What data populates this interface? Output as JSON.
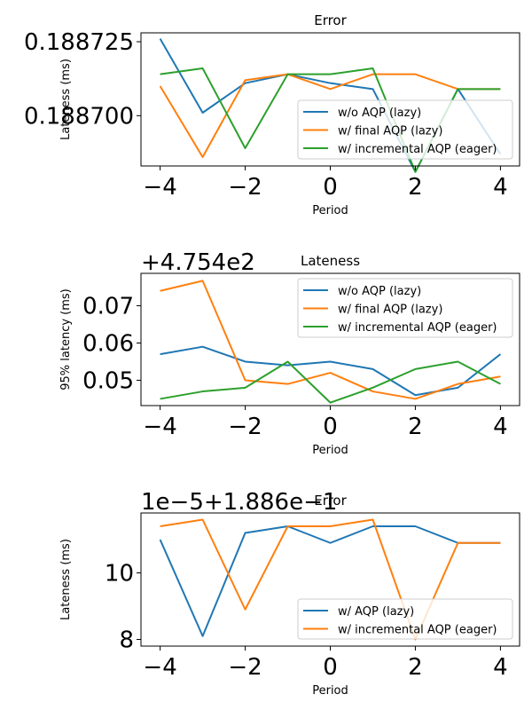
{
  "chart_data": [
    {
      "type": "line",
      "title": "Error",
      "xlabel": "Period",
      "ylabel": "Lateness (ms)",
      "offset_text": "",
      "x": [
        -4,
        -3,
        -2,
        -1,
        0,
        1,
        2,
        3,
        4
      ],
      "xlim": [
        -4.45,
        4.45
      ],
      "ylim": [
        0.188683,
        0.188728
      ],
      "xticks": [
        -4,
        -2,
        0,
        2,
        4
      ],
      "xtick_labels": [
        "−4",
        "−2",
        "0",
        "2",
        "4"
      ],
      "yticks": [
        0.1887,
        0.188725
      ],
      "ytick_labels": [
        "0.188700",
        "0.188725"
      ],
      "legend_loc": "lower-right",
      "series": [
        {
          "name": "w/o AQP (lazy)",
          "color": "#1f77b4",
          "values": [
            0.188726,
            0.188701,
            0.188711,
            0.188714,
            0.188711,
            0.188709,
            0.188681,
            0.188709,
            0.188687
          ]
        },
        {
          "name": "w/ final AQP (lazy)",
          "color": "#ff7f0e",
          "values": [
            0.18871,
            0.188686,
            0.188712,
            0.188714,
            0.188709,
            0.188714,
            0.188714,
            0.188709,
            0.188709
          ]
        },
        {
          "name": "w/ incremental AQP (eager)",
          "color": "#2ca02c",
          "values": [
            0.188714,
            0.188716,
            0.188689,
            0.188714,
            0.188714,
            0.188716,
            0.188681,
            0.188709,
            0.188709
          ]
        }
      ]
    },
    {
      "type": "line",
      "title": "Lateness",
      "xlabel": "Period",
      "ylabel": "95% latency (ms)",
      "offset_text": "+4.754e2",
      "x": [
        -4,
        -3,
        -2,
        -1,
        0,
        1,
        2,
        3,
        4
      ],
      "xlim": [
        -4.45,
        4.45
      ],
      "ylim": [
        0.0432,
        0.0787
      ],
      "xticks": [
        -4,
        -2,
        0,
        2,
        4
      ],
      "xtick_labels": [
        "−4",
        "−2",
        "0",
        "2",
        "4"
      ],
      "yticks": [
        0.05,
        0.06,
        0.07
      ],
      "ytick_labels": [
        "0.05",
        "0.06",
        "0.07"
      ],
      "legend_loc": "upper-right",
      "series": [
        {
          "name": "w/o AQP (lazy)",
          "color": "#1f77b4",
          "values": [
            0.057,
            0.059,
            0.055,
            0.054,
            0.055,
            0.053,
            0.046,
            0.048,
            0.057
          ]
        },
        {
          "name": "w/ final AQP (lazy)",
          "color": "#ff7f0e",
          "values": [
            0.074,
            0.0767,
            0.05,
            0.049,
            0.052,
            0.047,
            0.045,
            0.049,
            0.051
          ]
        },
        {
          "name": "w/ incremental AQP (eager)",
          "color": "#2ca02c",
          "values": [
            0.045,
            0.047,
            0.048,
            0.055,
            0.044,
            0.048,
            0.053,
            0.055,
            0.049
          ]
        }
      ]
    },
    {
      "type": "line",
      "title": "Error",
      "xlabel": "Period",
      "ylabel": "Lateness (ms)",
      "offset_text": "1e−5+1.886e−1",
      "x": [
        -4,
        -3,
        -2,
        -1,
        0,
        1,
        2,
        3,
        4
      ],
      "xlim": [
        -4.45,
        4.45
      ],
      "ylim": [
        7.8,
        11.8
      ],
      "xticks": [
        -4,
        -2,
        0,
        2,
        4
      ],
      "xtick_labels": [
        "−4",
        "−2",
        "0",
        "2",
        "4"
      ],
      "yticks": [
        8,
        10
      ],
      "ytick_labels": [
        "8",
        "10"
      ],
      "legend_loc": "lower-right",
      "series": [
        {
          "name": "w/ AQP (lazy)",
          "color": "#1f77b4",
          "values": [
            11.0,
            8.1,
            11.2,
            11.4,
            10.9,
            11.4,
            11.4,
            10.9,
            10.9
          ]
        },
        {
          "name": "w/ incremental AQP (eager)",
          "color": "#ff7f0e",
          "values": [
            11.4,
            11.6,
            8.9,
            11.4,
            11.4,
            11.6,
            8.0,
            10.9,
            10.9
          ]
        }
      ]
    }
  ]
}
